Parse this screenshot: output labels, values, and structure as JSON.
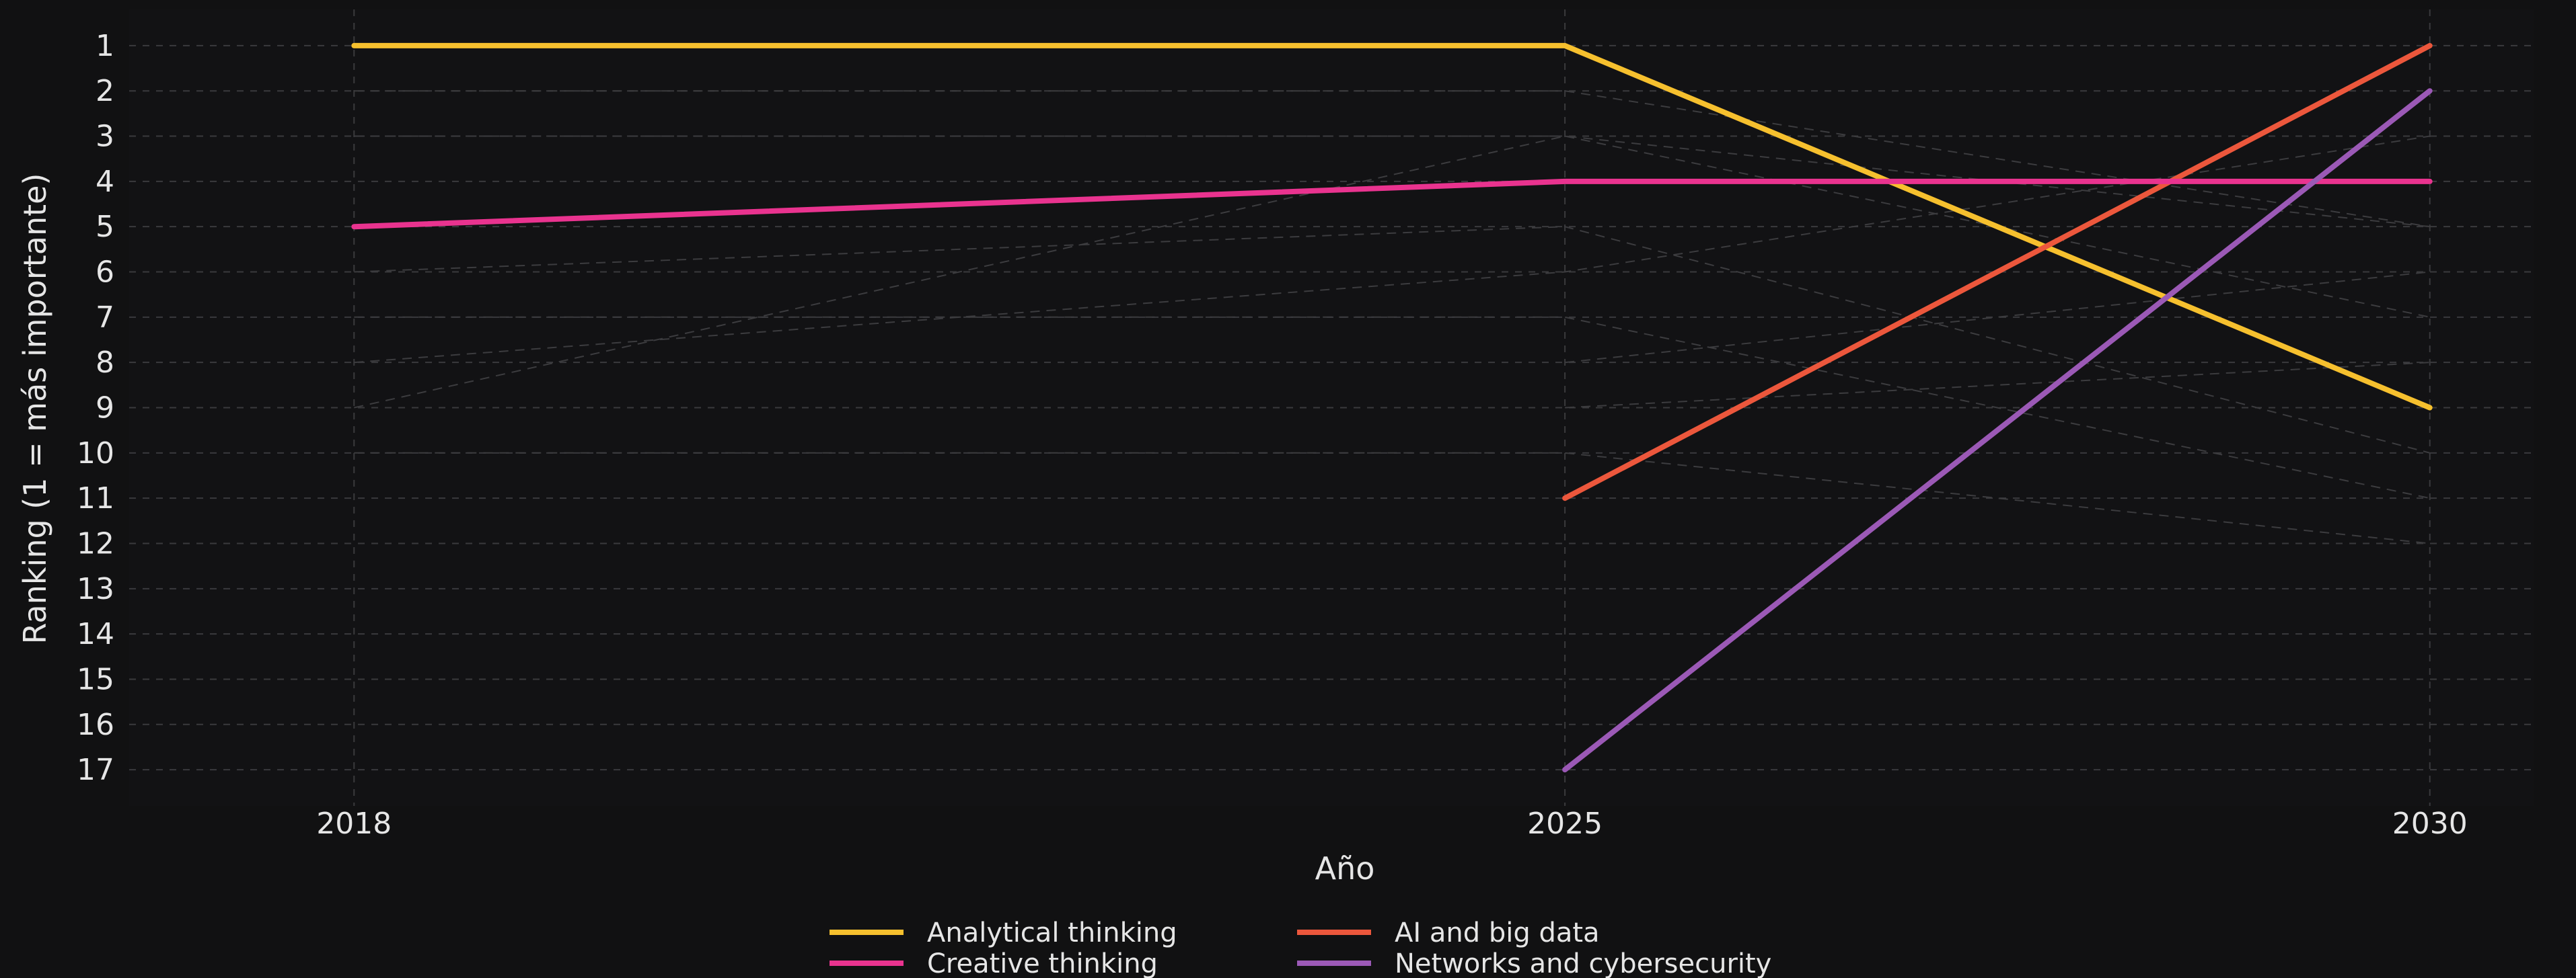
{
  "chart_data": {
    "type": "line",
    "title": "",
    "xlabel": "Año",
    "ylabel": "Ranking (1 = más importante)",
    "x": [
      2018,
      2025,
      2030
    ],
    "x_tick_labels": [
      "2018",
      "2025",
      "2030"
    ],
    "ylim": [
      17.8,
      0.2
    ],
    "y_inverted": true,
    "y_ticks": [
      1,
      2,
      3,
      4,
      5,
      6,
      7,
      8,
      9,
      10,
      11,
      12,
      13,
      14,
      15,
      16,
      17
    ],
    "grid": true,
    "legend_position": "bottom-center",
    "series": [
      {
        "name": "Analytical thinking",
        "color": "#f6c02e",
        "values": [
          1,
          1,
          9
        ]
      },
      {
        "name": "AI and big data",
        "color": "#ec573c",
        "values": [
          null,
          11,
          1
        ]
      },
      {
        "name": "Creative thinking",
        "color": "#e9338f",
        "values": [
          5,
          4,
          4
        ]
      },
      {
        "name": "Networks and cybersecurity",
        "color": "#9b59b6",
        "values": [
          null,
          17,
          2
        ]
      }
    ],
    "background_series": [
      {
        "values": [
          2,
          2,
          5
        ]
      },
      {
        "values": [
          3,
          3,
          7
        ]
      },
      {
        "values": [
          6,
          5,
          10
        ]
      },
      {
        "values": [
          7,
          7,
          11
        ]
      },
      {
        "values": [
          8,
          6,
          3
        ]
      },
      {
        "values": [
          9,
          3,
          5
        ]
      },
      {
        "values": [
          10,
          10,
          12
        ]
      },
      {
        "values": [
          null,
          8,
          6
        ]
      },
      {
        "values": [
          null,
          9,
          8
        ]
      }
    ]
  }
}
